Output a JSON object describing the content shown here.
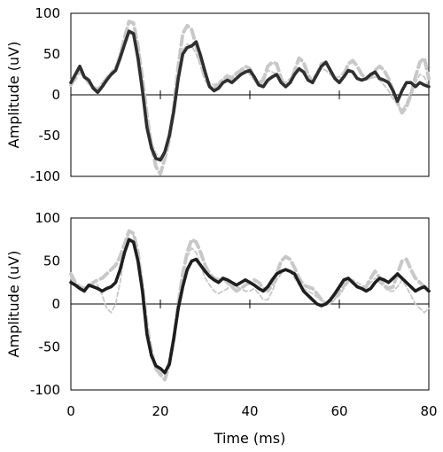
{
  "chart_data": [
    {
      "type": "line",
      "panel": "top",
      "title": "",
      "xlabel": "",
      "ylabel": "Amplitude (uV)",
      "xlim": [
        0,
        80
      ],
      "ylim": [
        -100,
        100
      ],
      "x_ticks": [
        0,
        20,
        40,
        60,
        80
      ],
      "y_ticks": [
        100,
        50,
        0,
        -50,
        -100
      ],
      "y_tick_labels": [
        "100",
        "50",
        "0",
        "-50",
        "-100"
      ],
      "grid": false,
      "legend": "none",
      "series": [
        {
          "style": "dashed",
          "color": "#c8c8c8",
          "weight": "thick",
          "x": [
            0,
            1,
            2,
            3,
            4,
            5,
            6,
            7,
            8,
            9,
            10,
            11,
            12,
            13,
            14,
            15,
            16,
            17,
            18,
            19,
            20,
            21,
            22,
            23,
            24,
            25,
            26,
            27,
            28,
            29,
            30,
            31,
            32,
            33,
            34,
            35,
            36,
            37,
            38,
            39,
            40,
            41,
            42,
            43,
            44,
            45,
            46,
            47,
            48,
            49,
            50,
            51,
            52,
            53,
            54,
            55,
            56,
            57,
            58,
            59,
            60,
            61,
            62,
            63,
            64,
            65,
            66,
            67,
            68,
            69,
            70,
            71,
            72,
            73,
            74,
            75,
            76,
            77,
            78,
            79,
            80
          ],
          "values": [
            12,
            20,
            30,
            22,
            15,
            10,
            5,
            12,
            20,
            25,
            30,
            48,
            70,
            90,
            88,
            60,
            20,
            -25,
            -62,
            -88,
            -97,
            -78,
            -55,
            -15,
            35,
            75,
            85,
            80,
            60,
            40,
            20,
            10,
            8,
            12,
            18,
            22,
            20,
            26,
            30,
            35,
            32,
            20,
            12,
            18,
            35,
            40,
            38,
            20,
            10,
            15,
            30,
            45,
            40,
            25,
            15,
            25,
            38,
            40,
            30,
            20,
            15,
            25,
            38,
            42,
            35,
            25,
            20,
            22,
            30,
            35,
            30,
            20,
            5,
            -10,
            -22,
            -15,
            0,
            22,
            40,
            45,
            20
          ]
        },
        {
          "style": "dashed",
          "color": "#c8c8c8",
          "weight": "thin",
          "x": [
            0,
            1,
            2,
            3,
            4,
            5,
            6,
            7,
            8,
            9,
            10,
            11,
            12,
            13,
            14,
            15,
            16,
            17,
            18,
            19,
            20,
            21,
            22,
            23,
            24,
            25,
            26,
            27,
            28,
            29,
            30,
            31,
            32,
            33,
            34,
            35,
            36,
            37,
            38,
            39,
            40,
            41,
            42,
            43,
            44,
            45,
            46,
            47,
            48,
            49,
            50,
            51,
            52,
            53,
            54,
            55,
            56,
            57,
            58,
            59,
            60,
            61,
            62,
            63,
            64,
            65,
            66,
            67,
            68,
            69,
            70,
            71,
            72,
            73,
            74,
            75,
            76,
            77,
            78,
            79,
            80
          ],
          "values": [
            18,
            25,
            28,
            20,
            15,
            10,
            8,
            15,
            22,
            28,
            35,
            52,
            68,
            78,
            72,
            45,
            10,
            -30,
            -58,
            -72,
            -78,
            -68,
            -50,
            -20,
            25,
            55,
            62,
            60,
            50,
            35,
            22,
            15,
            12,
            15,
            20,
            25,
            22,
            28,
            30,
            30,
            25,
            18,
            15,
            22,
            30,
            28,
            25,
            18,
            15,
            20,
            28,
            32,
            28,
            20,
            20,
            28,
            32,
            30,
            25,
            22,
            22,
            28,
            30,
            28,
            22,
            18,
            18,
            20,
            22,
            18,
            12,
            5,
            -5,
            -12,
            -20,
            -10,
            5,
            15,
            25,
            22,
            10
          ]
        },
        {
          "style": "solid",
          "color": "#2f2f2f",
          "weight": "bold",
          "x": [
            0,
            1,
            2,
            3,
            4,
            5,
            6,
            7,
            8,
            9,
            10,
            11,
            12,
            13,
            14,
            15,
            16,
            17,
            18,
            19,
            20,
            21,
            22,
            23,
            24,
            25,
            26,
            27,
            28,
            29,
            30,
            31,
            32,
            33,
            34,
            35,
            36,
            37,
            38,
            39,
            40,
            41,
            42,
            43,
            44,
            45,
            46,
            47,
            48,
            49,
            50,
            51,
            52,
            53,
            54,
            55,
            56,
            57,
            58,
            59,
            60,
            61,
            62,
            63,
            64,
            65,
            66,
            67,
            68,
            69,
            70,
            71,
            72,
            73,
            74,
            75,
            76,
            77,
            78,
            79,
            80
          ],
          "values": [
            15,
            25,
            35,
            22,
            18,
            8,
            3,
            10,
            18,
            25,
            30,
            45,
            62,
            78,
            75,
            45,
            5,
            -40,
            -65,
            -78,
            -80,
            -70,
            -50,
            -20,
            20,
            50,
            58,
            60,
            65,
            48,
            28,
            10,
            5,
            8,
            15,
            18,
            15,
            20,
            25,
            28,
            30,
            22,
            12,
            10,
            18,
            22,
            25,
            15,
            10,
            15,
            25,
            32,
            28,
            18,
            15,
            25,
            35,
            40,
            30,
            20,
            15,
            22,
            30,
            28,
            20,
            18,
            20,
            25,
            28,
            20,
            18,
            15,
            5,
            -8,
            5,
            15,
            15,
            10,
            15,
            12,
            10
          ]
        }
      ]
    },
    {
      "type": "line",
      "panel": "bottom",
      "title": "",
      "xlabel": "Time (ms)",
      "ylabel": "Amplitude (uV)",
      "xlim": [
        0,
        80
      ],
      "ylim": [
        -100,
        100
      ],
      "x_ticks": [
        0,
        20,
        40,
        60,
        80
      ],
      "x_tick_labels": [
        "0",
        "20",
        "40",
        "60",
        "80"
      ],
      "y_ticks": [
        100,
        50,
        0,
        -50,
        -100
      ],
      "y_tick_labels": [
        "100",
        "50",
        "0",
        "-50",
        "-100"
      ],
      "grid": false,
      "legend": "none",
      "series": [
        {
          "style": "dashed",
          "color": "#c8c8c8",
          "weight": "thick",
          "x": [
            0,
            1,
            2,
            3,
            4,
            5,
            6,
            7,
            8,
            9,
            10,
            11,
            12,
            13,
            14,
            15,
            16,
            17,
            18,
            19,
            20,
            21,
            22,
            23,
            24,
            25,
            26,
            27,
            28,
            29,
            30,
            31,
            32,
            33,
            34,
            35,
            36,
            37,
            38,
            39,
            40,
            41,
            42,
            43,
            44,
            45,
            46,
            47,
            48,
            49,
            50,
            51,
            52,
            53,
            54,
            55,
            56,
            57,
            58,
            59,
            60,
            61,
            62,
            63,
            64,
            65,
            66,
            67,
            68,
            69,
            70,
            71,
            72,
            73,
            74,
            75,
            76,
            77,
            78,
            79,
            80
          ],
          "values": [
            35,
            25,
            20,
            18,
            20,
            25,
            28,
            30,
            35,
            40,
            45,
            55,
            70,
            85,
            82,
            60,
            20,
            -25,
            -55,
            -75,
            -82,
            -88,
            -70,
            -40,
            0,
            35,
            60,
            75,
            72,
            60,
            45,
            35,
            30,
            28,
            30,
            25,
            20,
            15,
            18,
            22,
            25,
            28,
            25,
            18,
            15,
            22,
            35,
            50,
            55,
            52,
            42,
            30,
            22,
            20,
            18,
            12,
            5,
            0,
            2,
            8,
            15,
            22,
            28,
            25,
            20,
            18,
            20,
            30,
            38,
            30,
            22,
            18,
            20,
            35,
            50,
            52,
            40,
            30,
            25,
            20,
            15
          ]
        },
        {
          "style": "dashed",
          "color": "#c8c8c8",
          "weight": "thin",
          "x": [
            0,
            1,
            2,
            3,
            4,
            5,
            6,
            7,
            8,
            9,
            10,
            11,
            12,
            13,
            14,
            15,
            16,
            17,
            18,
            19,
            20,
            21,
            22,
            23,
            24,
            25,
            26,
            27,
            28,
            29,
            30,
            31,
            32,
            33,
            34,
            35,
            36,
            37,
            38,
            39,
            40,
            41,
            42,
            43,
            44,
            45,
            46,
            47,
            48,
            49,
            50,
            51,
            52,
            53,
            54,
            55,
            56,
            57,
            58,
            59,
            60,
            61,
            62,
            63,
            64,
            65,
            66,
            67,
            68,
            69,
            70,
            71,
            72,
            73,
            74,
            75,
            76,
            77,
            78,
            79,
            80
          ],
          "values": [
            30,
            22,
            18,
            15,
            20,
            25,
            22,
            10,
            -5,
            -10,
            0,
            25,
            60,
            85,
            80,
            55,
            15,
            -30,
            -60,
            -78,
            -80,
            -82,
            -65,
            -35,
            0,
            30,
            55,
            65,
            60,
            45,
            30,
            22,
            15,
            12,
            15,
            18,
            22,
            20,
            18,
            15,
            15,
            18,
            12,
            5,
            5,
            15,
            28,
            35,
            40,
            38,
            30,
            22,
            18,
            15,
            12,
            8,
            5,
            0,
            0,
            5,
            10,
            18,
            25,
            28,
            25,
            22,
            20,
            25,
            30,
            25,
            20,
            15,
            15,
            20,
            28,
            20,
            10,
            0,
            -5,
            -10,
            -5
          ]
        },
        {
          "style": "solid",
          "color": "#1e1e1e",
          "weight": "bold",
          "x": [
            0,
            1,
            2,
            3,
            4,
            5,
            6,
            7,
            8,
            9,
            10,
            11,
            12,
            13,
            14,
            15,
            16,
            17,
            18,
            19,
            20,
            21,
            22,
            23,
            24,
            25,
            26,
            27,
            28,
            29,
            30,
            31,
            32,
            33,
            34,
            35,
            36,
            37,
            38,
            39,
            40,
            41,
            42,
            43,
            44,
            45,
            46,
            47,
            48,
            49,
            50,
            51,
            52,
            53,
            54,
            55,
            56,
            57,
            58,
            59,
            60,
            61,
            62,
            63,
            64,
            65,
            66,
            67,
            68,
            69,
            70,
            71,
            72,
            73,
            74,
            75,
            76,
            77,
            78,
            79,
            80
          ],
          "values": [
            25,
            22,
            18,
            15,
            22,
            20,
            18,
            15,
            18,
            20,
            25,
            40,
            60,
            75,
            72,
            50,
            15,
            -35,
            -60,
            -72,
            -75,
            -80,
            -70,
            -40,
            -5,
            20,
            40,
            50,
            52,
            45,
            38,
            32,
            28,
            25,
            30,
            28,
            25,
            22,
            25,
            28,
            25,
            22,
            18,
            15,
            20,
            28,
            35,
            38,
            40,
            38,
            35,
            25,
            15,
            10,
            5,
            0,
            -2,
            0,
            5,
            12,
            20,
            28,
            30,
            25,
            20,
            18,
            15,
            18,
            25,
            30,
            28,
            25,
            30,
            35,
            30,
            25,
            20,
            15,
            18,
            20,
            15
          ]
        }
      ]
    }
  ]
}
